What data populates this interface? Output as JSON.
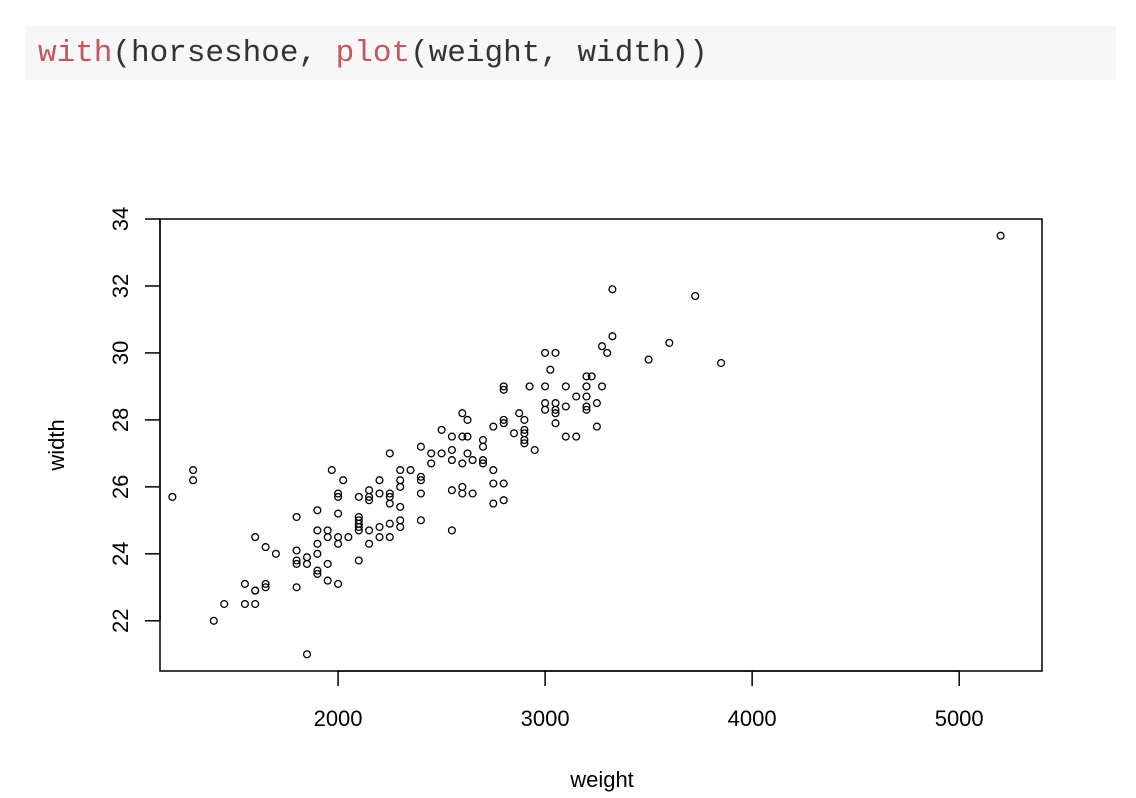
{
  "code": {
    "tokens": [
      {
        "text": "with",
        "kind": "function"
      },
      {
        "text": "(horseshoe, ",
        "kind": "plain"
      },
      {
        "text": "plot",
        "kind": "function"
      },
      {
        "text": "(weight, width))",
        "kind": "plain"
      }
    ]
  },
  "chart_data": {
    "type": "scatter",
    "title": "",
    "xlabel": "weight",
    "ylabel": "width",
    "xlim": [
      1140,
      5400
    ],
    "ylim": [
      20.5,
      34
    ],
    "xticks": [
      2000,
      3000,
      4000,
      5000
    ],
    "yticks": [
      22,
      24,
      26,
      28,
      30,
      32,
      34
    ],
    "grid": false,
    "marker": "open-circle",
    "points": [
      [
        1200,
        25.7
      ],
      [
        1300,
        26.5
      ],
      [
        1300,
        26.2
      ],
      [
        1400,
        22.0
      ],
      [
        1450,
        22.5
      ],
      [
        1550,
        22.5
      ],
      [
        1550,
        23.1
      ],
      [
        1600,
        22.5
      ],
      [
        1600,
        22.9
      ],
      [
        1600,
        22.9
      ],
      [
        1600,
        24.5
      ],
      [
        1650,
        23.0
      ],
      [
        1650,
        23.1
      ],
      [
        1650,
        24.2
      ],
      [
        1700,
        24.0
      ],
      [
        1800,
        23.0
      ],
      [
        1800,
        23.7
      ],
      [
        1800,
        23.8
      ],
      [
        1800,
        24.1
      ],
      [
        1800,
        25.1
      ],
      [
        1850,
        21.0
      ],
      [
        1850,
        23.7
      ],
      [
        1850,
        23.9
      ],
      [
        1900,
        23.4
      ],
      [
        1900,
        23.5
      ],
      [
        1900,
        24.0
      ],
      [
        1900,
        24.3
      ],
      [
        1900,
        24.7
      ],
      [
        1900,
        25.3
      ],
      [
        1950,
        23.2
      ],
      [
        1950,
        23.7
      ],
      [
        1950,
        24.5
      ],
      [
        1950,
        24.7
      ],
      [
        1970,
        26.5
      ],
      [
        2000,
        23.1
      ],
      [
        2000,
        24.3
      ],
      [
        2000,
        24.5
      ],
      [
        2000,
        25.2
      ],
      [
        2000,
        25.7
      ],
      [
        2000,
        25.8
      ],
      [
        2025,
        26.2
      ],
      [
        2050,
        24.5
      ],
      [
        2100,
        23.8
      ],
      [
        2100,
        24.7
      ],
      [
        2100,
        24.8
      ],
      [
        2100,
        24.9
      ],
      [
        2100,
        25.0
      ],
      [
        2100,
        25.1
      ],
      [
        2100,
        25.7
      ],
      [
        2150,
        24.3
      ],
      [
        2150,
        24.7
      ],
      [
        2150,
        25.6
      ],
      [
        2150,
        25.7
      ],
      [
        2150,
        25.9
      ],
      [
        2200,
        24.5
      ],
      [
        2200,
        24.8
      ],
      [
        2200,
        25.8
      ],
      [
        2200,
        26.2
      ],
      [
        2250,
        24.5
      ],
      [
        2250,
        24.9
      ],
      [
        2250,
        25.5
      ],
      [
        2250,
        25.7
      ],
      [
        2250,
        25.8
      ],
      [
        2250,
        27.0
      ],
      [
        2300,
        24.8
      ],
      [
        2300,
        25.0
      ],
      [
        2300,
        25.4
      ],
      [
        2300,
        26.0
      ],
      [
        2300,
        26.2
      ],
      [
        2300,
        26.5
      ],
      [
        2350,
        26.5
      ],
      [
        2400,
        25.0
      ],
      [
        2400,
        25.8
      ],
      [
        2400,
        26.2
      ],
      [
        2400,
        26.3
      ],
      [
        2400,
        27.2
      ],
      [
        2450,
        26.7
      ],
      [
        2450,
        27.0
      ],
      [
        2500,
        27.0
      ],
      [
        2500,
        27.7
      ],
      [
        2550,
        24.7
      ],
      [
        2550,
        25.9
      ],
      [
        2550,
        26.8
      ],
      [
        2550,
        27.1
      ],
      [
        2550,
        27.5
      ],
      [
        2600,
        25.8
      ],
      [
        2600,
        26.0
      ],
      [
        2600,
        26.7
      ],
      [
        2600,
        27.5
      ],
      [
        2600,
        28.2
      ],
      [
        2625,
        27.0
      ],
      [
        2625,
        27.5
      ],
      [
        2625,
        28.0
      ],
      [
        2650,
        25.8
      ],
      [
        2650,
        26.8
      ],
      [
        2700,
        26.7
      ],
      [
        2700,
        26.8
      ],
      [
        2700,
        27.2
      ],
      [
        2700,
        27.4
      ],
      [
        2750,
        25.5
      ],
      [
        2750,
        26.1
      ],
      [
        2750,
        26.5
      ],
      [
        2750,
        27.8
      ],
      [
        2800,
        25.6
      ],
      [
        2800,
        26.1
      ],
      [
        2800,
        27.9
      ],
      [
        2800,
        28.0
      ],
      [
        2800,
        28.9
      ],
      [
        2800,
        29.0
      ],
      [
        2850,
        27.6
      ],
      [
        2875,
        28.2
      ],
      [
        2900,
        27.3
      ],
      [
        2900,
        27.4
      ],
      [
        2900,
        27.6
      ],
      [
        2900,
        27.7
      ],
      [
        2900,
        28.0
      ],
      [
        2925,
        29.0
      ],
      [
        2950,
        27.1
      ],
      [
        3000,
        28.3
      ],
      [
        3000,
        28.5
      ],
      [
        3000,
        29.0
      ],
      [
        3000,
        30.0
      ],
      [
        3025,
        29.5
      ],
      [
        3050,
        27.9
      ],
      [
        3050,
        28.2
      ],
      [
        3050,
        28.3
      ],
      [
        3050,
        28.5
      ],
      [
        3050,
        30.0
      ],
      [
        3100,
        27.5
      ],
      [
        3100,
        28.4
      ],
      [
        3100,
        29.0
      ],
      [
        3150,
        27.5
      ],
      [
        3150,
        28.7
      ],
      [
        3200,
        28.3
      ],
      [
        3200,
        28.4
      ],
      [
        3200,
        28.7
      ],
      [
        3200,
        29.0
      ],
      [
        3200,
        29.3
      ],
      [
        3225,
        29.3
      ],
      [
        3250,
        27.8
      ],
      [
        3250,
        28.5
      ],
      [
        3275,
        29.0
      ],
      [
        3275,
        30.2
      ],
      [
        3300,
        30.0
      ],
      [
        3325,
        30.5
      ],
      [
        3325,
        31.9
      ],
      [
        3500,
        29.8
      ],
      [
        3600,
        30.3
      ],
      [
        3725,
        31.7
      ],
      [
        3850,
        29.7
      ],
      [
        5200,
        33.5
      ]
    ]
  }
}
